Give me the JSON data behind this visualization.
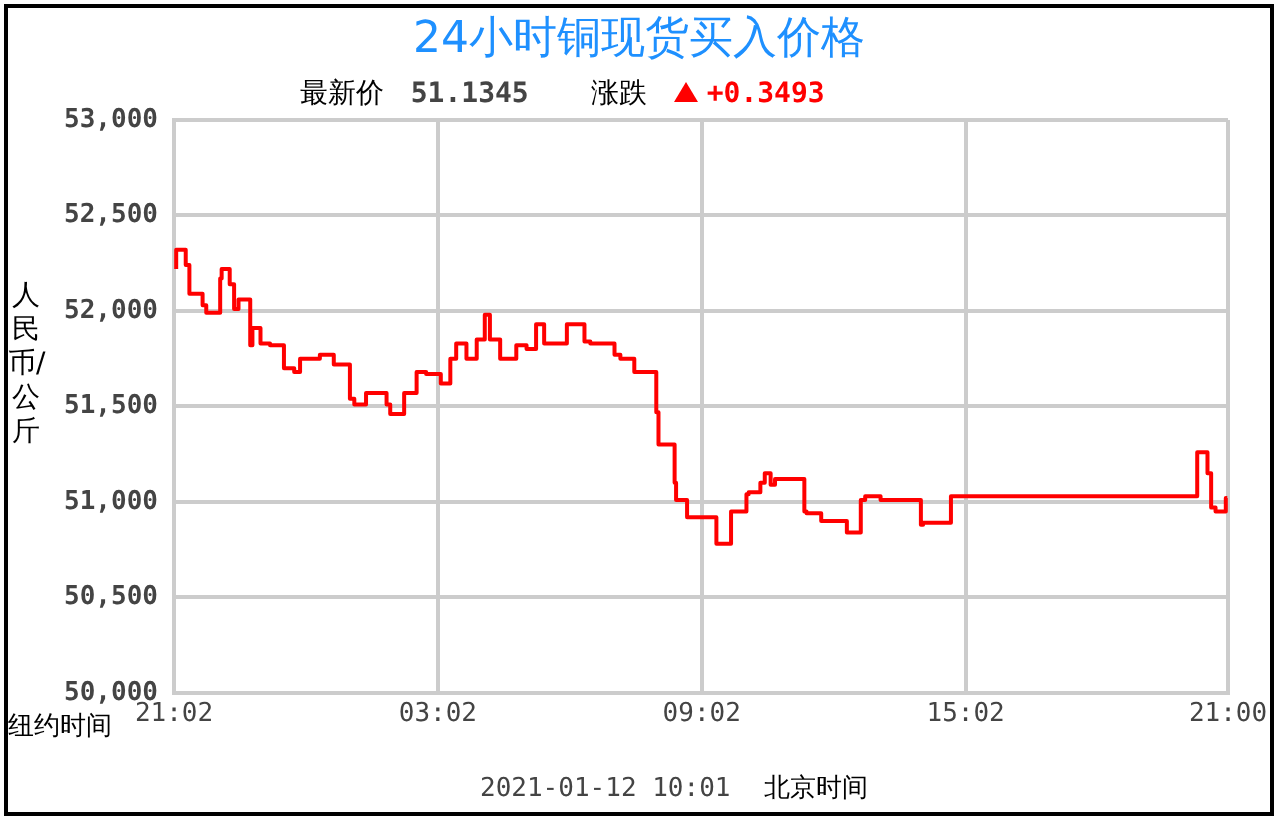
{
  "chart_data": {
    "type": "step",
    "title": "24小时铜现货买入价格",
    "ylabel": "人民币/公斤",
    "xlabel": "纽约时间",
    "annotations": [
      "最新价",
      "51.1345",
      "涨跌",
      "+0.3493",
      "2021-01-12 10:01",
      "北京时间"
    ],
    "x": [
      "2021-01-10T21:05",
      "2021-01-10T21:18",
      "2021-01-10T21:23",
      "2021-01-10T21:29",
      "2021-01-10T21:41",
      "2021-01-10T21:46",
      "2021-01-10T22:05",
      "2021-01-10T22:07",
      "2021-01-10T22:18",
      "2021-01-10T22:24",
      "2021-01-10T22:30",
      "2021-01-10T22:46",
      "2021-01-10T22:49",
      "2021-01-10T23:00",
      "2021-01-10T23:13",
      "2021-01-10T23:32",
      "2021-01-10T23:46",
      "2021-01-10T23:54",
      "2021-01-11T00:21",
      "2021-01-11T00:40",
      "2021-01-11T01:02",
      "2021-01-11T01:08",
      "2021-01-11T01:24",
      "2021-01-11T01:52",
      "2021-01-11T01:57",
      "2021-01-11T02:16",
      "2021-01-11T02:33",
      "2021-01-11T02:46",
      "2021-01-11T03:06",
      "2021-01-11T03:19",
      "2021-01-11T03:27",
      "2021-01-11T03:41",
      "2021-01-11T03:55",
      "2021-01-11T04:06",
      "2021-01-11T04:13",
      "2021-01-11T04:27",
      "2021-01-11T04:49",
      "2021-01-11T05:03",
      "2021-01-11T05:16",
      "2021-01-11T05:27",
      "2021-01-11T05:41",
      "2021-01-11T05:58",
      "2021-01-11T06:22",
      "2021-01-11T06:30",
      "2021-01-11T07:03",
      "2021-01-11T07:11",
      "2021-01-11T07:30",
      "2021-01-11T07:44",
      "2021-01-11T08:00",
      "2021-01-11T08:03",
      "2021-01-11T08:06",
      "2021-01-11T08:25",
      "2021-01-11T08:27",
      "2021-01-11T08:42",
      "2021-01-11T09:06",
      "2021-01-11T09:22",
      "2021-01-11T09:28",
      "2021-01-11T09:42",
      "2021-01-11T09:47",
      "2021-01-11T10:03",
      "2021-01-11T10:06",
      "2021-01-11T10:22",
      "2021-01-11T10:28",
      "2021-01-11T10:36",
      "2021-01-11T10:42",
      "2021-01-11T11:04",
      "2021-01-11T11:22",
      "2021-01-11T11:25",
      "2021-01-11T11:45",
      "2021-01-11T12:20",
      "2021-01-11T12:23",
      "2021-01-11T12:39",
      "2021-01-11T12:45",
      "2021-01-11T13:06",
      "2021-01-11T13:25",
      "2021-01-11T14:01",
      "2021-01-11T14:04",
      "2021-01-11T14:23",
      "2021-01-11T14:42",
      "2021-01-11T14:45",
      "2021-01-11T20:18",
      "2021-01-11T20:21",
      "2021-01-11T20:32",
      "2021-01-11T20:37",
      "2021-01-11T20:43",
      "2021-01-11T20:57",
      "2021-01-11T20:59"
    ],
    "series": [
      {
        "color": "#ff0000",
        "values": [
          52220,
          52320,
          52240,
          52090,
          52090,
          52030,
          51990,
          52170,
          52220,
          52140,
          52010,
          52060,
          51820,
          51910,
          51830,
          51820,
          51700,
          51680,
          51750,
          51770,
          51720,
          51540,
          51510,
          51570,
          51510,
          51460,
          51570,
          51680,
          51670,
          51620,
          51750,
          51830,
          51750,
          51850,
          51980,
          51850,
          51750,
          51820,
          51800,
          51930,
          51830,
          51830,
          51930,
          51840,
          51830,
          51770,
          51750,
          51680,
          51680,
          51470,
          51300,
          51300,
          51100,
          51010,
          50920,
          50920,
          50780,
          50780,
          50950,
          50950,
          51040,
          51050,
          51100,
          51150,
          51090,
          51120,
          51120,
          50950,
          50940,
          50900,
          50840,
          50840,
          51010,
          51030,
          51010,
          51010,
          50880,
          50890,
          50890,
          51030,
          51030,
          51260,
          51260,
          51150,
          50970,
          50950,
          51020
        ]
      }
    ],
    "xlim": [
      "2021-01-10T21:02",
      "2021-01-11T21:00"
    ],
    "xticks": [
      {
        "value": "2021-01-10T21:02",
        "label": "21:02"
      },
      {
        "value": "2021-01-11T03:02",
        "label": "03:02"
      },
      {
        "value": "2021-01-11T09:02",
        "label": "09:02"
      },
      {
        "value": "2021-01-11T15:02",
        "label": "15:02"
      },
      {
        "value": "2021-01-11T21:00",
        "label": "21:00"
      }
    ],
    "ylim": [
      50000,
      53000
    ],
    "yticks": [
      {
        "value": 50000,
        "label": "50,000"
      },
      {
        "value": 50500,
        "label": "50,500"
      },
      {
        "value": 51000,
        "label": "51,000"
      },
      {
        "value": 51500,
        "label": "51,500"
      },
      {
        "value": 52000,
        "label": "52,000"
      },
      {
        "value": 52500,
        "label": "52,500"
      },
      {
        "value": 53000,
        "label": "53,000"
      }
    ],
    "grid": true,
    "legend": false,
    "marker": "none",
    "line_style": "solid"
  }
}
